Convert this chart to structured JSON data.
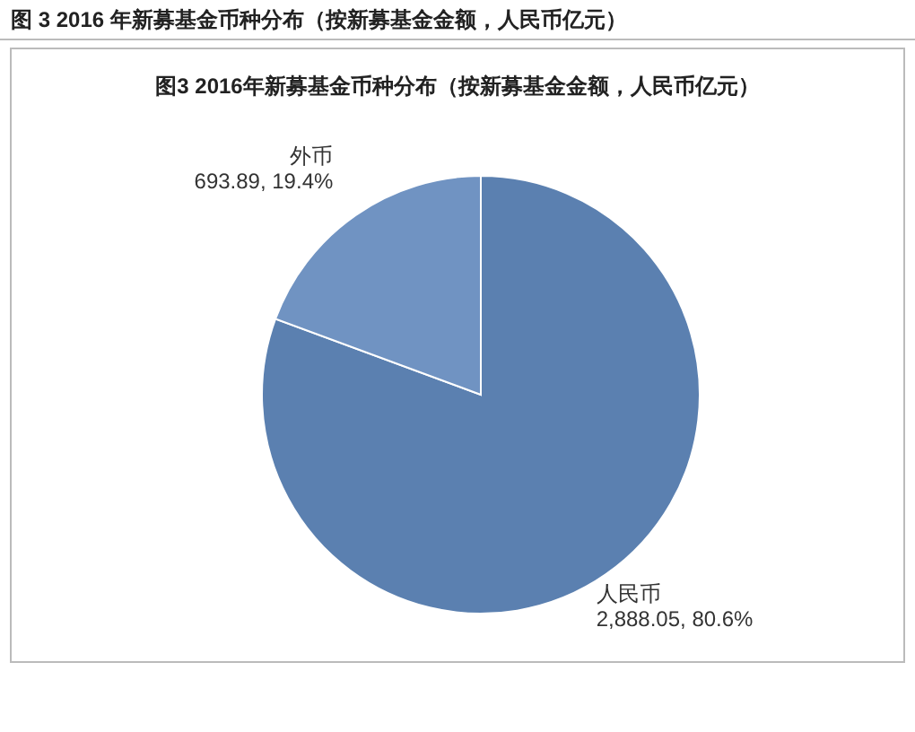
{
  "chart_data": {
    "type": "pie",
    "title": "图 3 2016 年新募基金币种分布（按新募基金金额，人民币亿元）",
    "subtitle": "图3 2016年新募基金币种分布（按新募基金金额，人民币亿元）",
    "categories": [
      "人民币",
      "外币"
    ],
    "values": [
      2888.05,
      693.89
    ],
    "colors": [
      "#5b80b0",
      "#7093c2"
    ],
    "value_labels": [
      "2,888.05, 80.6%",
      "693.89, 19.4%"
    ]
  }
}
